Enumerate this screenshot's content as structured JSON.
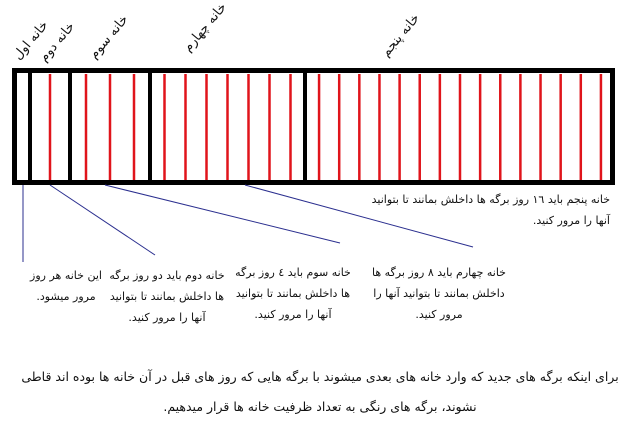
{
  "headers": [
    "خانه اول",
    "خانه دوم",
    "خانه سوم",
    "خانه چهارم",
    "خانه پنجم"
  ],
  "box_sheet_counts": [
    0,
    1,
    3,
    7,
    15
  ],
  "colors": {
    "border": "#000000",
    "sheet": "#e0141b",
    "pointer": "#2b2f8f"
  },
  "captions": {
    "box1": "این خانه هر روز مرور میشود.",
    "box2": "خانه دوم باید دو روز برگه ها داخلش بمانند تا بتوانید آنها را مرور کنید.",
    "box3": "خانه سوم باید ٤ روز برگه ها داخلش بمانند تا بتوانید آنها را مرور کنید.",
    "box4": "خانه چهارم باید ٨ روز برگه ها داخلش بمانند تا بتوانید آنها را مرور کنید.",
    "box5": "خانه پنجم باید ١٦ روز برگه ها داخلش بمانند تا بتوانید آنها را مرور کنید."
  },
  "explanation": "برای اینکه برگه های جدید که وارد خانه های بعدی میشوند با برگه هایی که روز های قبل در آن خانه ها بوده اند قاطی نشوند، برگه های رنگی به تعداد ظرفیت خانه ها قرار میدهیم."
}
